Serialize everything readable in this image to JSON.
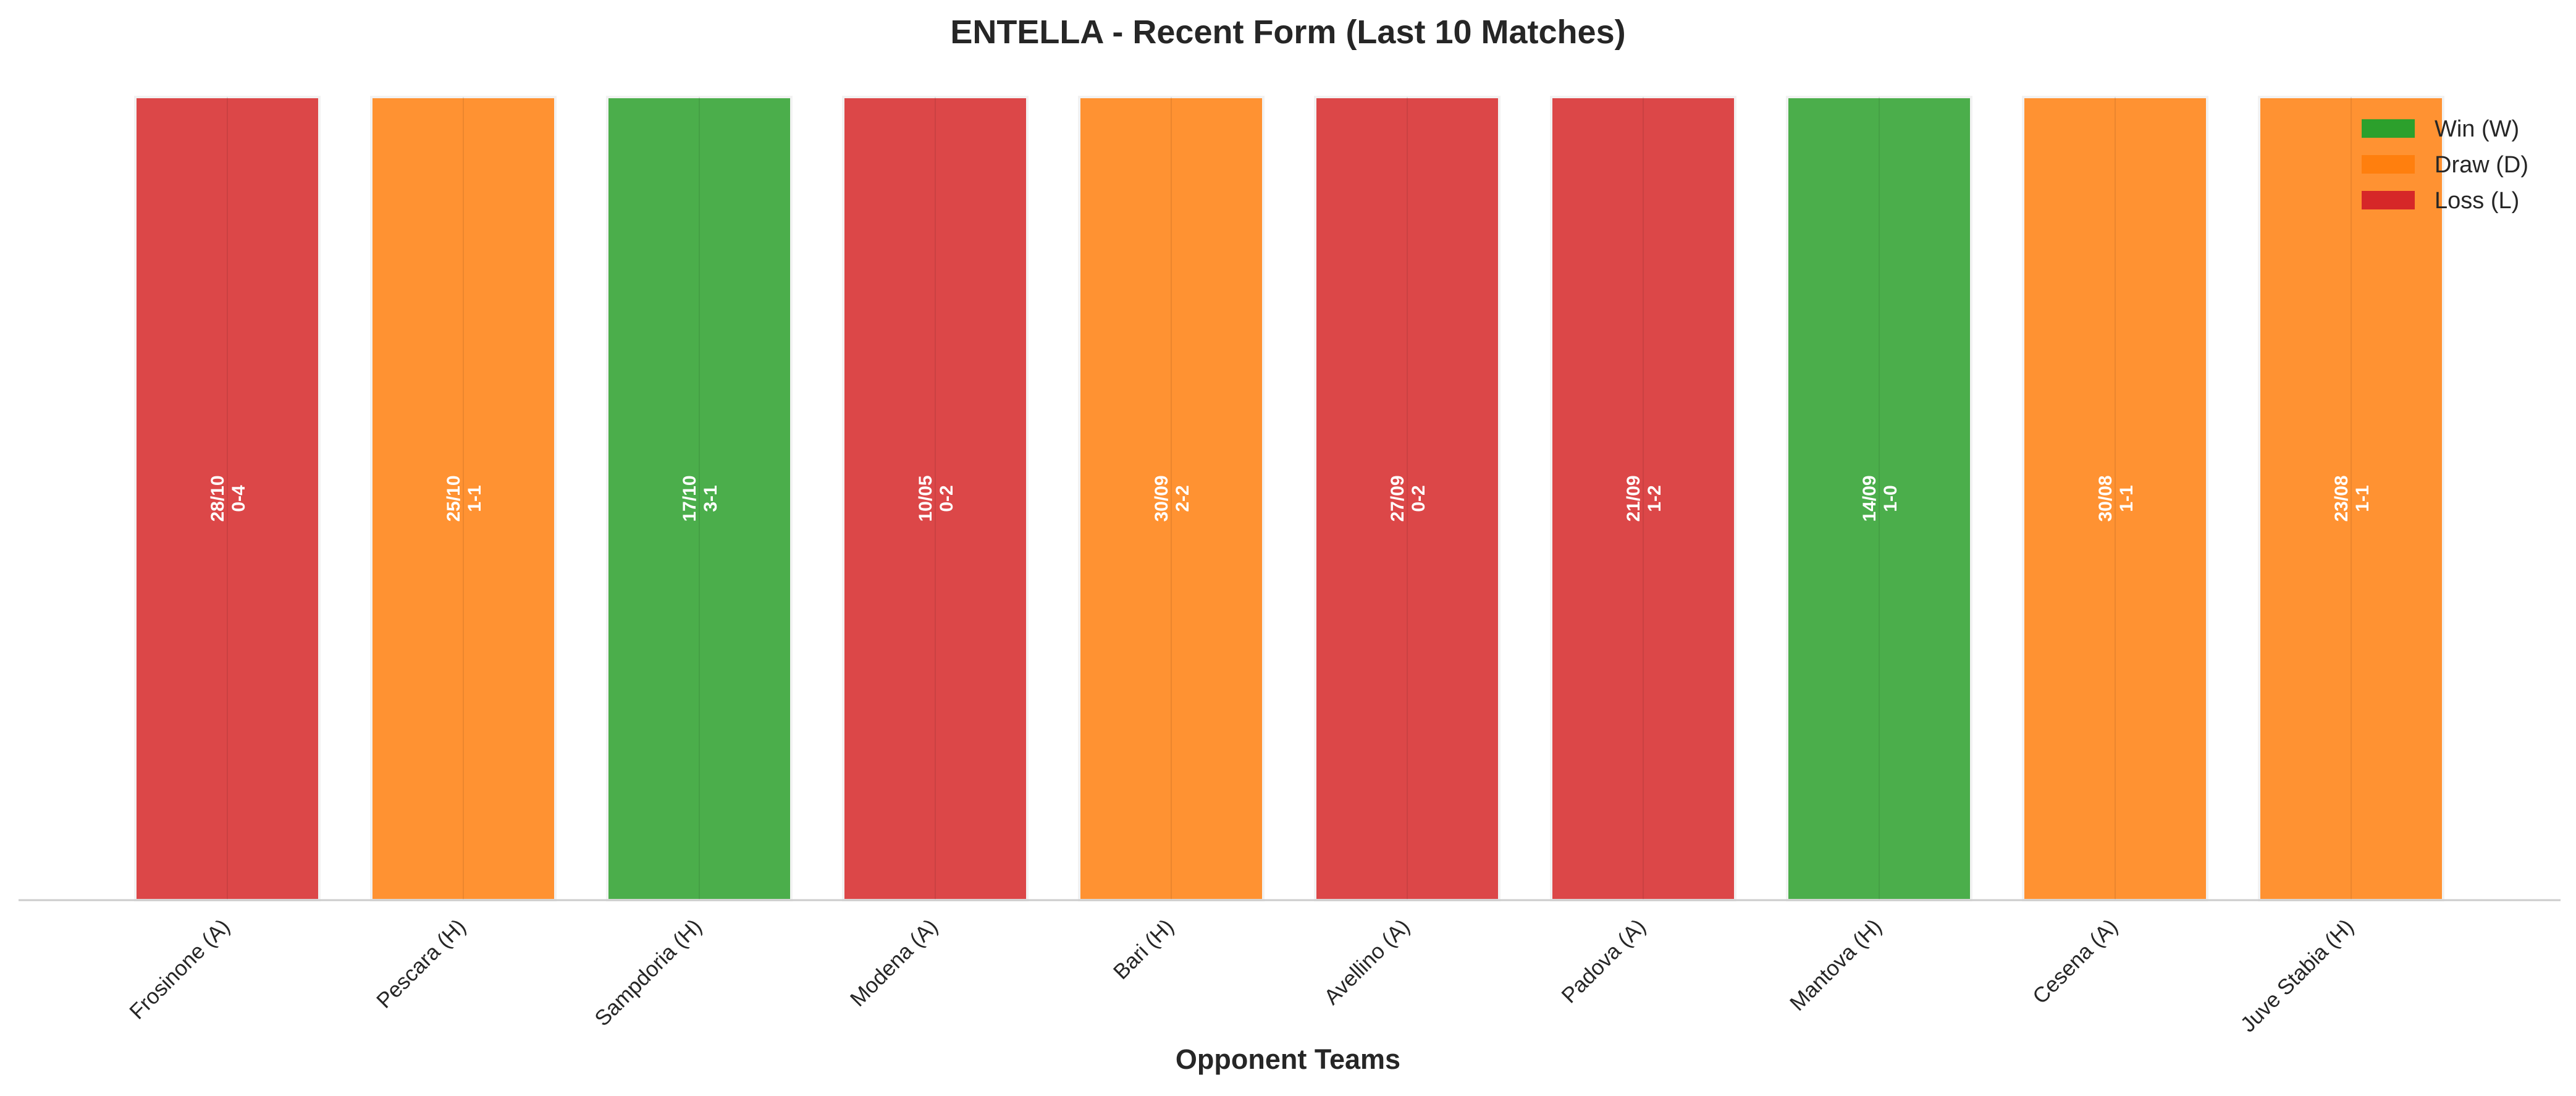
{
  "chart_data": {
    "type": "bar",
    "title": "ENTELLA - Recent Form (Last 10 Matches)",
    "xlabel": "Opponent Teams",
    "ylabel": "",
    "categories": [
      "Frosinone (A)",
      "Pescara (H)",
      "Sampdoria (H)",
      "Modena (A)",
      "Bari (H)",
      "Avellino (A)",
      "Padova (A)",
      "Mantova (H)",
      "Cesena (A)",
      "Juve Stabia (H)"
    ],
    "values": [
      1,
      1,
      1,
      1,
      1,
      1,
      1,
      1,
      1,
      1
    ],
    "results": [
      "L",
      "D",
      "W",
      "L",
      "D",
      "L",
      "L",
      "W",
      "D",
      "D"
    ],
    "dates": [
      "28/10",
      "25/10",
      "17/10",
      "10/05",
      "30/09",
      "27/09",
      "21/09",
      "14/09",
      "30/08",
      "23/08"
    ],
    "scores": [
      "0-4",
      "1-1",
      "3-1",
      "0-2",
      "2-2",
      "0-2",
      "1-2",
      "1-0",
      "1-1",
      "1-1"
    ],
    "ylim": [
      0,
      1
    ],
    "grid": false,
    "legend_position": "top-right",
    "legend": [
      {
        "key": "W",
        "label": "Win (W)",
        "color": "#2ca02c"
      },
      {
        "key": "D",
        "label": "Draw (D)",
        "color": "#ff7f0e"
      },
      {
        "key": "L",
        "label": "Loss (L)",
        "color": "#d62728"
      }
    ]
  }
}
